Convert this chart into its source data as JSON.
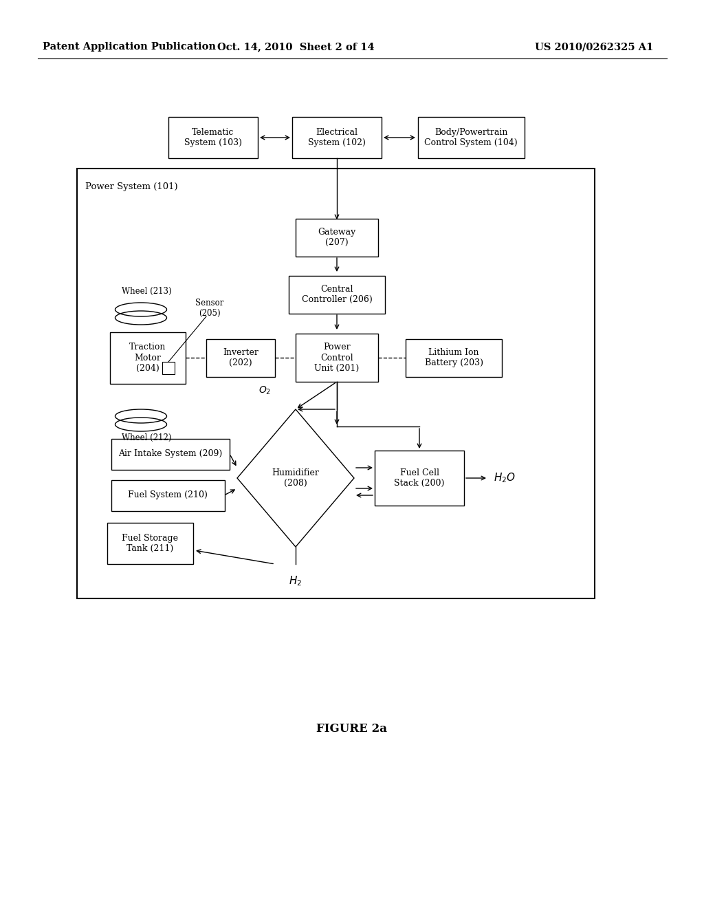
{
  "header_left": "Patent Application Publication",
  "header_center": "Oct. 14, 2010  Sheet 2 of 14",
  "header_right": "US 2010/0262325 A1",
  "figure_caption": "FIGURE 2a",
  "bg_color": "#ffffff"
}
